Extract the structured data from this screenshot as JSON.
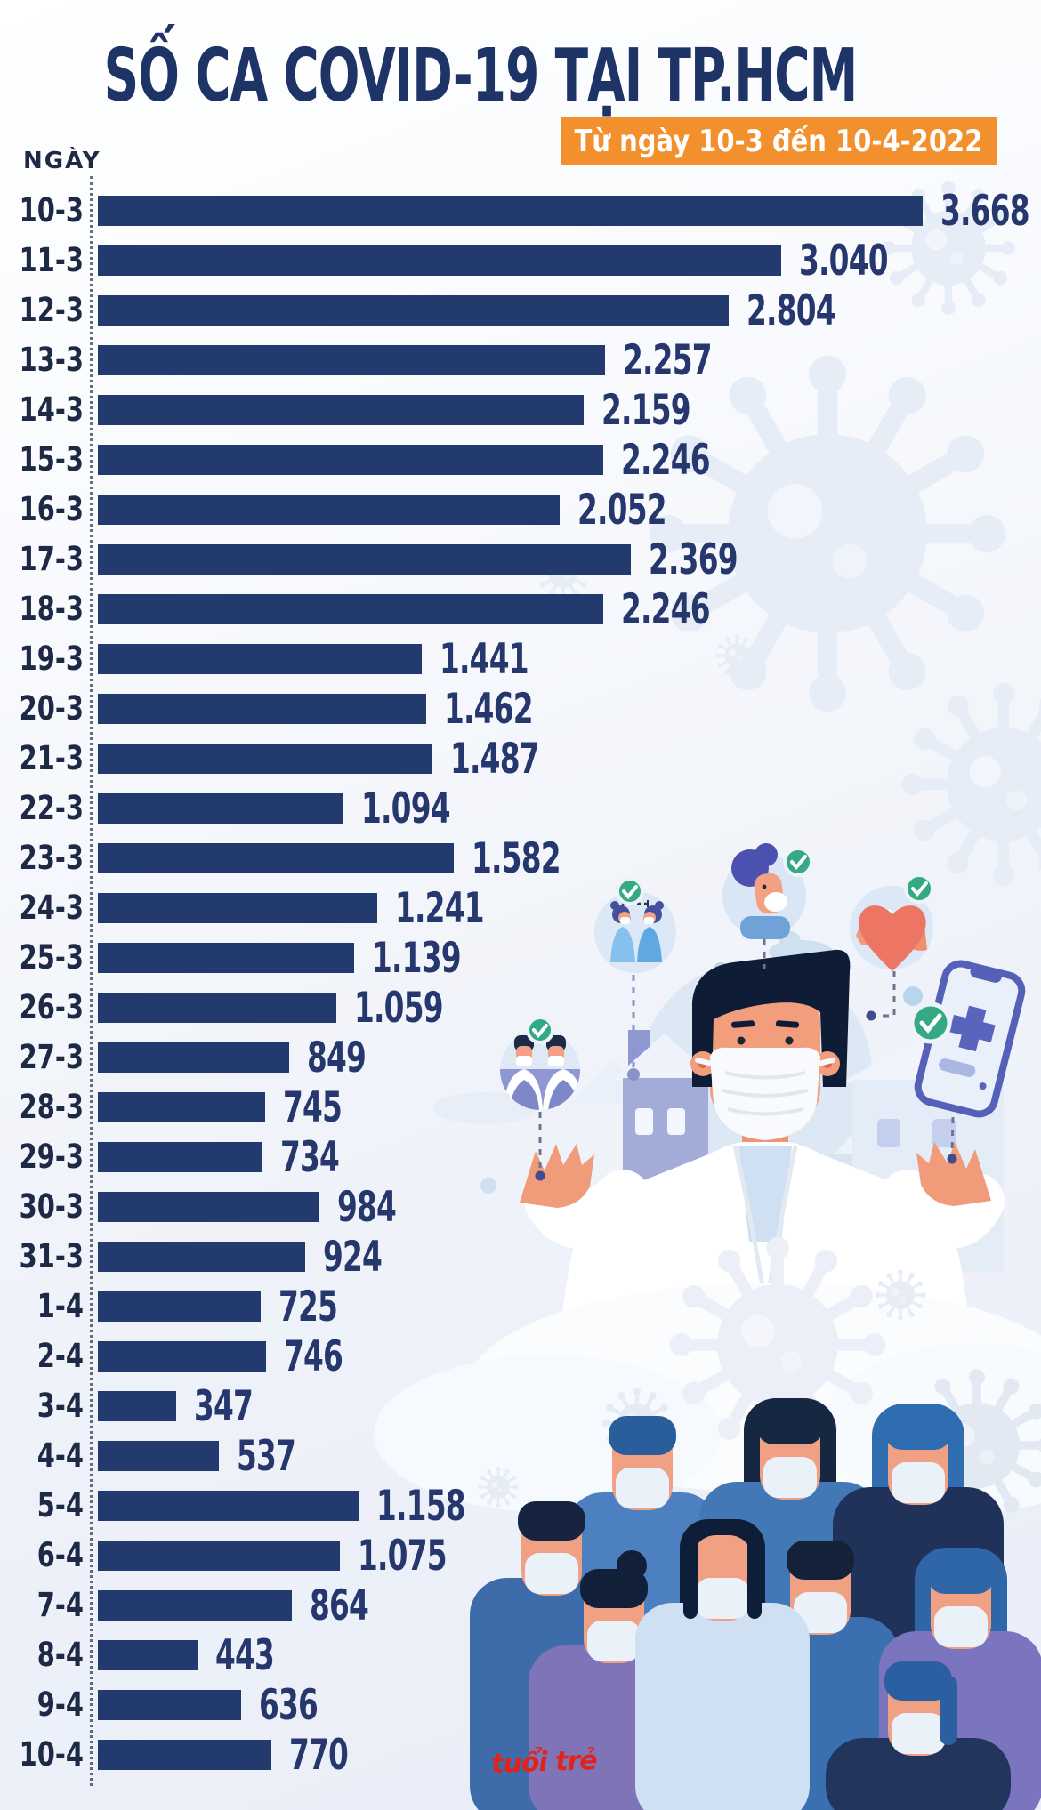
{
  "header": {
    "title": "SỐ CA COVID-19 TẠI TP.HCM",
    "subtitle": "Từ ngày 10-3 đến 10-4-2022"
  },
  "chart_data": {
    "type": "bar",
    "orientation": "horizontal",
    "title": "SỐ CA COVID-19 TẠI TP.HCM",
    "period": "Từ ngày 10-3 đến 10-4-2022",
    "ylabel": "NGÀY",
    "xlabel": "",
    "xlim": [
      0,
      4000
    ],
    "grid": false,
    "legend": "none",
    "value_label_format": "thousands-dot",
    "categories": [
      "10-3",
      "11-3",
      "12-3",
      "13-3",
      "14-3",
      "15-3",
      "16-3",
      "17-3",
      "18-3",
      "19-3",
      "20-3",
      "21-3",
      "22-3",
      "23-3",
      "24-3",
      "25-3",
      "26-3",
      "27-3",
      "28-3",
      "29-3",
      "30-3",
      "31-3",
      "1-4",
      "2-4",
      "3-4",
      "4-4",
      "5-4",
      "6-4",
      "7-4",
      "8-4",
      "9-4",
      "10-4"
    ],
    "values": [
      3668,
      3040,
      2804,
      2257,
      2159,
      2246,
      2052,
      2369,
      2246,
      1441,
      1462,
      1487,
      1094,
      1582,
      1241,
      1139,
      1059,
      849,
      745,
      734,
      984,
      924,
      725,
      746,
      347,
      537,
      1158,
      1075,
      864,
      443,
      636,
      770
    ],
    "display_values": [
      "3.668",
      "3.040",
      "2.804",
      "2.257",
      "2.159",
      "2.246",
      "2.052",
      "2.369",
      "2.246",
      "1.441",
      "1.462",
      "1.487",
      "1.094",
      "1.582",
      "1.241",
      "1.139",
      "1.059",
      "849",
      "745",
      "734",
      "984",
      "924",
      "725",
      "746",
      "347",
      "537",
      "1.158",
      "1.075",
      "864",
      "443",
      "636",
      "770"
    ]
  },
  "footer": {
    "logo_text": "tuổi trẻ"
  },
  "colors": {
    "bar": "#233a6f",
    "title_navy": "#1e3366",
    "value_text": "#26376d",
    "category_text": "#1e2945",
    "accent_orange": "#f2902d",
    "check_green": "#35a983",
    "logo_red": "#e0241b",
    "virus_light": "#e7edf7",
    "skin": "#f1a183",
    "mask_white": "#eaf1f9"
  },
  "icons": {
    "check": "check-icon",
    "virus": "virus-icon",
    "smartphone": "smartphone-medical-icon",
    "heart": "heart-icon",
    "face_mask": "face-mask-icon"
  }
}
